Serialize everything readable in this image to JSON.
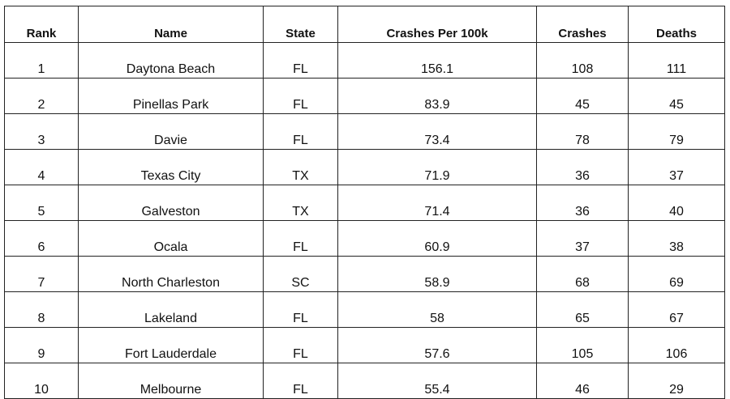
{
  "table": {
    "headers": [
      "Rank",
      "Name",
      "State",
      "Crashes Per 100k",
      "Crashes",
      "Deaths"
    ],
    "rows": [
      [
        "1",
        "Daytona Beach",
        "FL",
        "156.1",
        "108",
        "111"
      ],
      [
        "2",
        "Pinellas Park",
        "FL",
        "83.9",
        "45",
        "45"
      ],
      [
        "3",
        "Davie",
        "FL",
        "73.4",
        "78",
        "79"
      ],
      [
        "4",
        "Texas City",
        "TX",
        "71.9",
        "36",
        "37"
      ],
      [
        "5",
        "Galveston",
        "TX",
        "71.4",
        "36",
        "40"
      ],
      [
        "6",
        "Ocala",
        "FL",
        "60.9",
        "37",
        "38"
      ],
      [
        "7",
        "North Charleston",
        "SC",
        "58.9",
        "68",
        "69"
      ],
      [
        "8",
        "Lakeland",
        "FL",
        "58",
        "65",
        "67"
      ],
      [
        "9",
        "Fort Lauderdale",
        "FL",
        "57.6",
        "105",
        "106"
      ],
      [
        "10",
        "Melbourne",
        "FL",
        "55.4",
        "46",
        "29"
      ]
    ]
  }
}
